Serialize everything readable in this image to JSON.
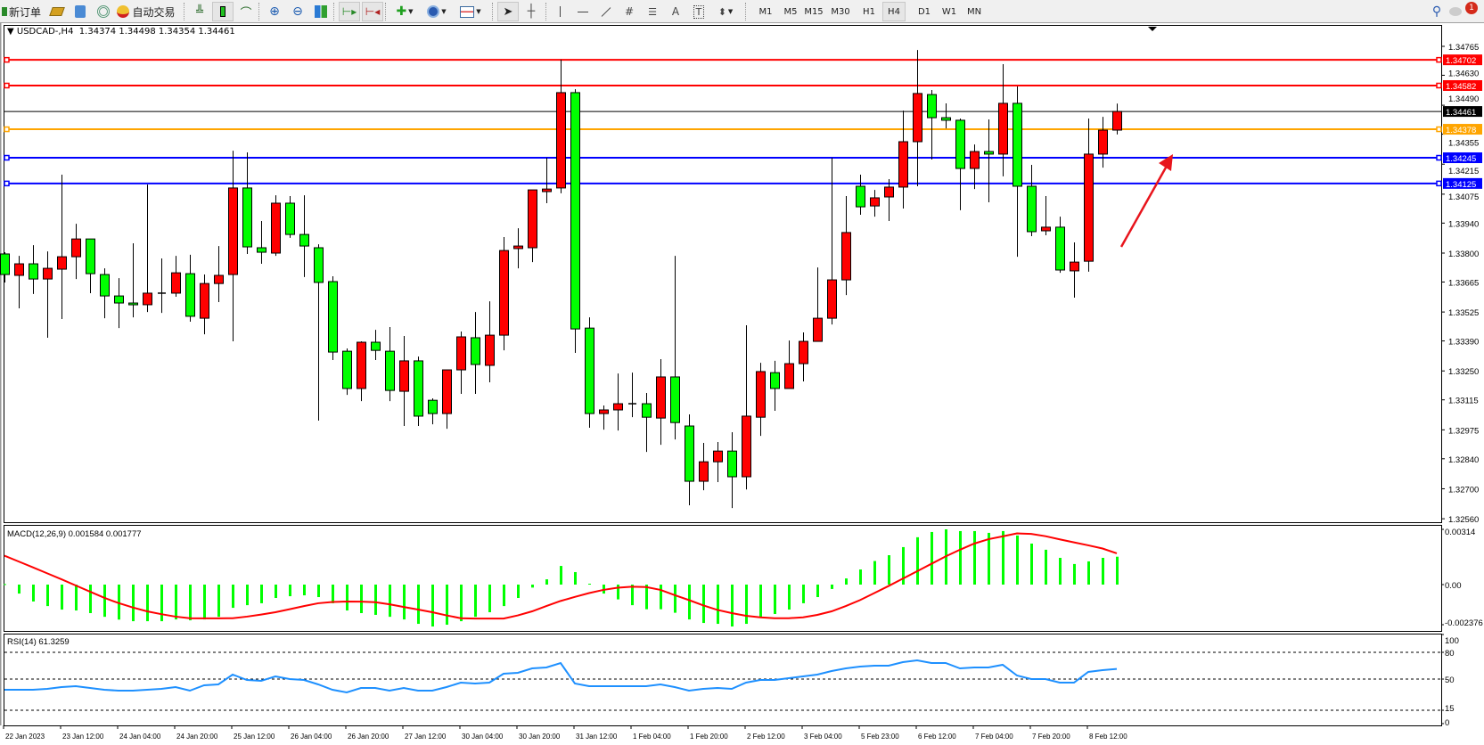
{
  "toolbar": {
    "new_order_label": "新订单",
    "auto_trading_label": "自动交易",
    "icons": [
      "new-order-icon",
      "strategy-tester-icon",
      "history-center-icon",
      "signals-icon",
      "auto-trading-icon",
      "bar-chart-icon",
      "candlestick-icon",
      "line-chart-icon",
      "zoom-in-icon",
      "zoom-out-icon",
      "tile-windows-icon",
      "chart-shift-icon",
      "auto-scroll-icon",
      "new-chart-icon",
      "periods-icon",
      "templates-icon",
      "cursor-icon",
      "crosshair-icon",
      "vertical-line-icon",
      "horizontal-line-icon",
      "trendline-icon",
      "equidistant-channel-icon",
      "fibonacci-icon",
      "text-icon",
      "text-label-icon",
      "arrows-icon",
      "search-icon",
      "chat-icon"
    ],
    "draw_tools": {
      "text": "A",
      "label": "T"
    },
    "timeframes": [
      "M1",
      "M5",
      "M15",
      "M30",
      "H1",
      "H4",
      "D1",
      "W1",
      "MN"
    ],
    "active_timeframe": "H4",
    "notification_count": "1"
  },
  "chart": {
    "symbol_label": "USDCAD-,H4",
    "ohlc_label": "1.34374 1.34498 1.34354 1.34461"
  },
  "chart_data": [
    {
      "type": "candlestick",
      "title": "USDCAD-,H4 1.34374 1.34498 1.34354 1.34461",
      "ylim": [
        1.3256,
        1.3479
      ],
      "y_ticks": [
        "1.34765",
        "1.34630",
        "1.34490",
        "1.34355",
        "1.34215",
        "1.34075",
        "1.33940",
        "1.33800",
        "1.33665",
        "1.33525",
        "1.33390",
        "1.33250",
        "1.33115",
        "1.32975",
        "1.32840",
        "1.32700",
        "1.32560"
      ],
      "x_ticks": [
        "22 Jan 2023",
        "23 Jan 12:00",
        "24 Jan 04:00",
        "24 Jan 20:00",
        "25 Jan 12:00",
        "26 Jan 04:00",
        "26 Jan 20:00",
        "27 Jan 12:00",
        "30 Jan 04:00",
        "30 Jan 20:00",
        "31 Jan 12:00",
        "1 Feb 04:00",
        "1 Feb 20:00",
        "2 Feb 12:00",
        "3 Feb 04:00",
        "5 Feb 23:00",
        "6 Feb 12:00",
        "7 Feb 04:00",
        "7 Feb 20:00",
        "8 Feb 12:00"
      ],
      "bull_color": "#ff0000",
      "bear_color": "#00ff00",
      "ohlc": [
        [
          1.33796,
          1.33804,
          1.33663,
          1.337
        ],
        [
          1.33696,
          1.33787,
          1.33542,
          1.3375
        ],
        [
          1.3375,
          1.33837,
          1.33609,
          1.33679
        ],
        [
          1.33679,
          1.33808,
          1.33405,
          1.33729
        ],
        [
          1.33725,
          1.34166,
          1.33492,
          1.33783
        ],
        [
          1.33783,
          1.33937,
          1.33679,
          1.33866
        ],
        [
          1.33866,
          1.33866,
          1.33613,
          1.33704
        ],
        [
          1.337,
          1.33729,
          1.33496,
          1.336
        ],
        [
          1.336,
          1.33683,
          1.3345,
          1.33567
        ],
        [
          1.33567,
          1.33846,
          1.335,
          1.33559
        ],
        [
          1.33559,
          1.3412,
          1.33525,
          1.33613
        ],
        [
          1.33613,
          1.33775,
          1.33521,
          1.33613
        ],
        [
          1.33613,
          1.33787,
          1.33596,
          1.33708
        ],
        [
          1.33704,
          1.33792,
          1.3348,
          1.33505
        ],
        [
          1.33496,
          1.337,
          1.33421,
          1.33658
        ],
        [
          1.33658,
          1.33833,
          1.33571,
          1.33696
        ],
        [
          1.337,
          1.34278,
          1.33388,
          1.34104
        ],
        [
          1.34104,
          1.3427,
          1.33796,
          1.33829
        ],
        [
          1.33825,
          1.3395,
          1.3375,
          1.33804
        ],
        [
          1.338,
          1.3407,
          1.33787,
          1.34033
        ],
        [
          1.34033,
          1.34066,
          1.33871,
          1.33887
        ],
        [
          1.33887,
          1.3407,
          1.33688,
          1.33833
        ],
        [
          1.33825,
          1.33841,
          1.33018,
          1.33663
        ],
        [
          1.33667,
          1.33692,
          1.33301,
          1.33338
        ],
        [
          1.33342,
          1.33355,
          1.33138,
          1.33168
        ],
        [
          1.33168,
          1.33388,
          1.33109,
          1.33384
        ],
        [
          1.33384,
          1.33442,
          1.33301,
          1.33346
        ],
        [
          1.33342,
          1.33455,
          1.33109,
          1.33159
        ],
        [
          1.33155,
          1.33413,
          1.32993,
          1.33297
        ],
        [
          1.33297,
          1.33317,
          1.32993,
          1.33039
        ],
        [
          1.33113,
          1.33122,
          1.33001,
          1.33051
        ],
        [
          1.33051,
          1.33255,
          1.3298,
          1.33255
        ],
        [
          1.33255,
          1.33434,
          1.33143,
          1.33409
        ],
        [
          1.33405,
          1.33525,
          1.33143,
          1.3328
        ],
        [
          1.33276,
          1.33575,
          1.33197,
          1.33417
        ],
        [
          1.33417,
          1.33875,
          1.33346,
          1.33812
        ],
        [
          1.33821,
          1.33916,
          1.33729,
          1.33833
        ],
        [
          1.33825,
          1.34095,
          1.33758,
          1.34095
        ],
        [
          1.34087,
          1.34245,
          1.34033,
          1.34099
        ],
        [
          1.34104,
          1.34703,
          1.34079,
          1.34549
        ],
        [
          1.34549,
          1.34565,
          1.33334,
          1.33446
        ],
        [
          1.3345,
          1.335,
          1.32985,
          1.33051
        ],
        [
          1.33051,
          1.33089,
          1.32976,
          1.33068
        ],
        [
          1.33068,
          1.33238,
          1.32972,
          1.33097
        ],
        [
          1.33097,
          1.33242,
          1.33034,
          1.33097
        ],
        [
          1.33097,
          1.33147,
          1.32872,
          1.33034
        ],
        [
          1.3303,
          1.33305,
          1.32905,
          1.33222
        ],
        [
          1.33222,
          1.33787,
          1.3293,
          1.33009
        ],
        [
          1.32993,
          1.33047,
          1.32623,
          1.32735
        ],
        [
          1.32735,
          1.32914,
          1.32693,
          1.32826
        ],
        [
          1.32826,
          1.32918,
          1.32731,
          1.32876
        ],
        [
          1.32876,
          1.32964,
          1.3261,
          1.32756
        ],
        [
          1.32756,
          1.33463,
          1.32697,
          1.33039
        ],
        [
          1.33034,
          1.33288,
          1.32947,
          1.33247
        ],
        [
          1.33242,
          1.33297,
          1.33064,
          1.33168
        ],
        [
          1.33168,
          1.33392,
          1.33168,
          1.33284
        ],
        [
          1.33284,
          1.3343,
          1.33201,
          1.33388
        ],
        [
          1.33388,
          1.33733,
          1.33388,
          1.33496
        ],
        [
          1.33496,
          1.34245,
          1.33467,
          1.33675
        ],
        [
          1.33675,
          1.34066,
          1.33604,
          1.33896
        ],
        [
          1.34112,
          1.34166,
          1.33979,
          1.34016
        ],
        [
          1.3402,
          1.34095,
          1.3397,
          1.34058
        ],
        [
          1.34062,
          1.34145,
          1.3395,
          1.34108
        ],
        [
          1.34108,
          1.34465,
          1.34008,
          1.3432
        ],
        [
          1.3432,
          1.34748,
          1.34112,
          1.34545
        ],
        [
          1.3454,
          1.34561,
          1.34237,
          1.34432
        ],
        [
          1.34432,
          1.34499,
          1.34382,
          1.3442
        ],
        [
          1.3442,
          1.34428,
          1.34,
          1.34195
        ],
        [
          1.34195,
          1.34307,
          1.34099,
          1.34274
        ],
        [
          1.34274,
          1.34424,
          1.34037,
          1.34262
        ],
        [
          1.34262,
          1.34682,
          1.34158,
          1.34499
        ],
        [
          1.34499,
          1.34578,
          1.33783,
          1.34112
        ],
        [
          1.34112,
          1.34212,
          1.33879,
          1.339
        ],
        [
          1.33904,
          1.34066,
          1.33883,
          1.33921
        ],
        [
          1.33921,
          1.3397,
          1.33708,
          1.33721
        ],
        [
          1.33717,
          1.3385,
          1.33592,
          1.33758
        ],
        [
          1.33762,
          1.34428,
          1.33713,
          1.34262
        ],
        [
          1.34262,
          1.34436,
          1.34199,
          1.34374
        ],
        [
          1.34374,
          1.34498,
          1.34354,
          1.34461
        ]
      ],
      "hlines": [
        {
          "value": 1.34702,
          "label": "1.34702",
          "color": "#ff0000"
        },
        {
          "value": 1.34582,
          "label": "1.34582",
          "color": "#ff0000"
        },
        {
          "value": 1.34378,
          "label": "1.34378",
          "color": "#ffa500"
        },
        {
          "value": 1.34245,
          "label": "1.34245",
          "color": "#0000ff"
        },
        {
          "value": 1.34125,
          "label": "1.34125",
          "color": "#0000ff"
        }
      ],
      "current_price": {
        "value": 1.34461,
        "label": "1.34461",
        "color": "#000000"
      },
      "annotation_arrow_color": "#e8141c"
    },
    {
      "type": "bar+line",
      "title": "MACD(12,26,9) 0.001584 0.001777",
      "y_ticks": [
        "0.00314",
        "0.00",
        "-0.002376"
      ],
      "ylim": [
        -0.002376,
        0.00314
      ],
      "histogram_color": "#00ff00",
      "signal_color": "#ff0000",
      "macd": [
        3e-05,
        -0.00051,
        -0.00096,
        -0.00122,
        -0.00142,
        -0.00147,
        -0.00162,
        -0.00183,
        -0.00199,
        -0.00208,
        -0.00208,
        -0.00208,
        -0.00198,
        -0.00203,
        -0.00198,
        -0.00183,
        -0.00132,
        -0.00117,
        -0.00106,
        -0.00076,
        -0.00066,
        -0.00061,
        -0.00071,
        -0.00106,
        -0.00147,
        -0.00162,
        -0.00172,
        -0.00183,
        -0.00198,
        -0.00223,
        -0.00238,
        -0.00228,
        -0.00208,
        -0.00183,
        -0.00157,
        -0.00122,
        -0.00076,
        -0.00017,
        0.0003,
        0.00106,
        0.00071,
        5e-05,
        -0.00051,
        -0.00084,
        -0.00117,
        -0.0014,
        -0.0014,
        -0.0016,
        -0.00198,
        -0.00218,
        -0.00223,
        -0.00238,
        -0.00223,
        -0.00183,
        -0.00167,
        -0.00142,
        -0.00106,
        -0.00071,
        -0.00025,
        0.00035,
        0.00086,
        0.00134,
        0.00167,
        0.00213,
        0.00269,
        0.00299,
        0.00314,
        0.00304,
        0.00304,
        0.00294,
        0.00304,
        0.00279,
        0.00233,
        0.00198,
        0.00152,
        0.00117,
        0.00132,
        0.00152,
        0.001584
      ],
      "signal": [
        0.00164,
        0.00131,
        0.00098,
        0.00064,
        0.0003,
        -5e-05,
        -0.0004,
        -0.00075,
        -0.00105,
        -0.0013,
        -0.00152,
        -0.00168,
        -0.00182,
        -0.00191,
        -0.00192,
        -0.00192,
        -0.00191,
        -0.00182,
        -0.0017,
        -0.00157,
        -0.0014,
        -0.00122,
        -0.00106,
        -0.00099,
        -0.00096,
        -0.00097,
        -0.001,
        -0.00112,
        -0.00127,
        -0.00142,
        -0.00157,
        -0.00175,
        -0.00191,
        -0.00193,
        -0.00193,
        -0.00193,
        -0.00175,
        -0.00152,
        -0.00122,
        -0.00093,
        -0.0007,
        -0.00048,
        -0.0003,
        -0.00018,
        -0.00012,
        -0.00014,
        -0.0003,
        -0.0006,
        -0.00088,
        -0.00118,
        -0.00144,
        -0.00162,
        -0.00177,
        -0.00186,
        -0.00191,
        -0.00191,
        -0.00186,
        -0.00172,
        -0.00152,
        -0.00122,
        -0.00088,
        -0.00048,
        -8e-05,
        0.00034,
        0.00076,
        0.00118,
        0.0016,
        0.00198,
        0.00233,
        0.00258,
        0.00274,
        0.00291,
        0.00288,
        0.00275,
        0.00257,
        0.0024,
        0.00223,
        0.00205,
        0.001777
      ]
    },
    {
      "type": "line",
      "title": "RSI(14) 61.3259",
      "y_ticks": [
        "100",
        "80",
        "50",
        "15",
        "0"
      ],
      "levels": [
        80,
        50,
        15
      ],
      "ylim": [
        0,
        100
      ],
      "color": "#1e90ff",
      "values": [
        38,
        38,
        38,
        39,
        41,
        42,
        40,
        38,
        37,
        37,
        38,
        39,
        41,
        37,
        43,
        44,
        55,
        49,
        48,
        53,
        50,
        49,
        44,
        38,
        35,
        40,
        40,
        37,
        40,
        37,
        37,
        41,
        46,
        45,
        46,
        56,
        57,
        62,
        63,
        68,
        45,
        42,
        42,
        42,
        42,
        42,
        44,
        41,
        37,
        39,
        40,
        39,
        46,
        49,
        49,
        51,
        53,
        55,
        59,
        62,
        64,
        65,
        65,
        69,
        71,
        68,
        68,
        62,
        63,
        63,
        66,
        54,
        50,
        50,
        46,
        46,
        58,
        60,
        61.3259
      ]
    }
  ]
}
